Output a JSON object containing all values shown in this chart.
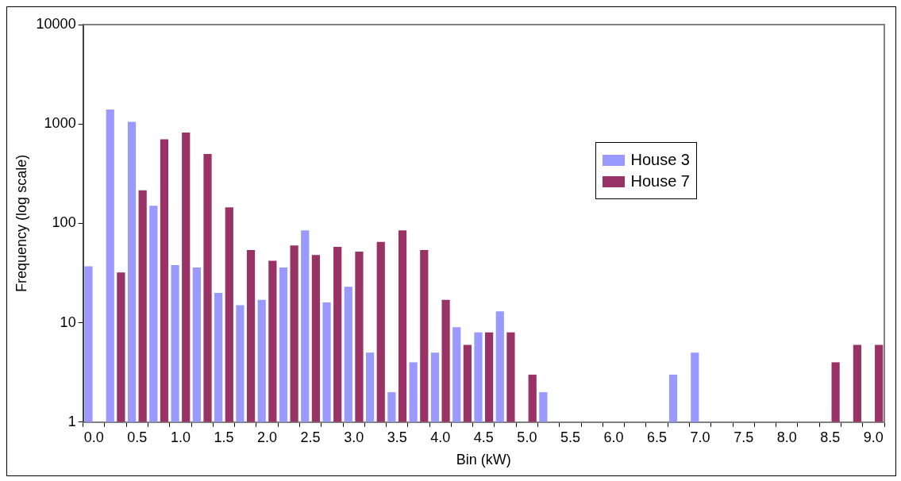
{
  "chart_data": {
    "type": "bar",
    "xlabel": "Bin (kW)",
    "ylabel": "Frequency (log scale)",
    "categories": [
      "0.0",
      null,
      "0.5",
      null,
      "1.0",
      null,
      "1.5",
      null,
      "2.0",
      null,
      "2.5",
      null,
      "3.0",
      null,
      "3.5",
      null,
      "4.0",
      null,
      "4.5",
      null,
      "5.0",
      null,
      "5.5",
      null,
      "6.0",
      null,
      "6.5",
      null,
      "7.0",
      null,
      "7.5",
      null,
      "8.0",
      null,
      "8.5",
      null,
      "9.0"
    ],
    "series": [
      {
        "name": "House 3",
        "color": "#9999ff",
        "values": [
          37,
          1400,
          1050,
          150,
          38,
          36,
          20,
          15,
          17,
          36,
          85,
          16,
          23,
          5,
          2,
          4,
          5,
          9,
          8,
          13,
          null,
          2,
          null,
          null,
          null,
          null,
          null,
          3,
          5,
          null,
          null,
          null,
          null,
          null,
          null,
          null,
          null
        ]
      },
      {
        "name": "House 7",
        "color": "#993366",
        "values": [
          null,
          32,
          215,
          700,
          820,
          500,
          145,
          54,
          42,
          60,
          48,
          58,
          52,
          65,
          85,
          54,
          17,
          6,
          8,
          8,
          3,
          null,
          null,
          null,
          null,
          null,
          null,
          null,
          null,
          null,
          null,
          null,
          null,
          null,
          4,
          6,
          6
        ]
      }
    ],
    "log": "y",
    "ylim": [
      1,
      10000
    ],
    "yticks": [
      1,
      10,
      100,
      1000,
      10000
    ],
    "grid": false,
    "legend": "right"
  }
}
